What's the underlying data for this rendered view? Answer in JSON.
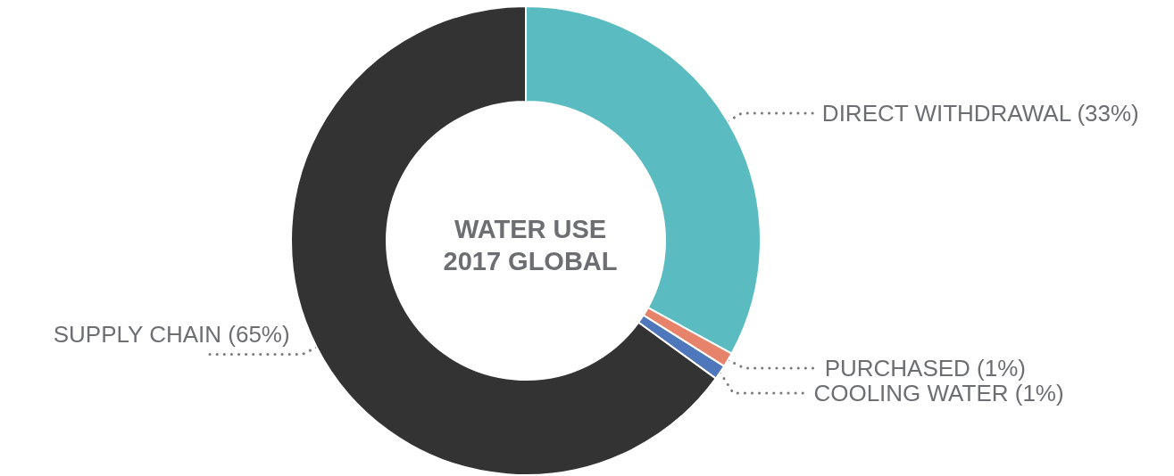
{
  "chart_data": {
    "type": "donut",
    "title": "WATER USE\n2017 GLOBAL",
    "categories": [
      "DIRECT WITHDRAWAL",
      "PURCHASED",
      "COOLING WATER",
      "SUPPLY CHAIN"
    ],
    "values": [
      33,
      1,
      1,
      65
    ],
    "value_labels": [
      "(33%)",
      "(1%)",
      "(1%)",
      "(65%)"
    ],
    "colors": [
      "#5abcc0",
      "#e8836b",
      "#4f77bb",
      "#333333"
    ],
    "legend": false
  }
}
